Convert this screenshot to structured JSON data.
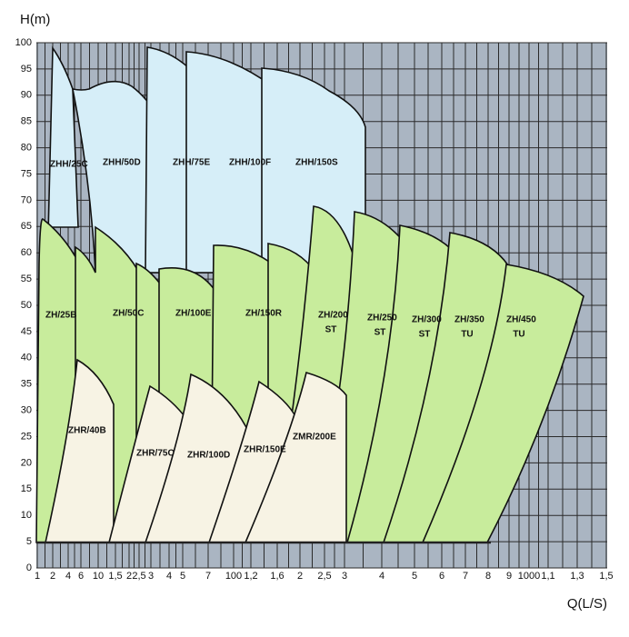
{
  "chart_data": {
    "type": "region",
    "y_label": "H(m)",
    "x_label": "Q(L/S)",
    "ylim": [
      0,
      100
    ],
    "yticks": [
      0,
      5,
      10,
      15,
      20,
      25,
      30,
      35,
      40,
      45,
      50,
      55,
      60,
      65,
      70,
      75,
      80,
      85,
      90,
      95,
      100
    ],
    "categories": [
      "1",
      "2",
      "4",
      "6",
      "10",
      "1,5",
      "2",
      "2,5",
      "3",
      "4",
      "5",
      "7",
      "100",
      "1,2",
      "1,6",
      "2",
      "2,5",
      "3",
      "4",
      "5",
      "6",
      "7",
      "8",
      "9",
      "1000",
      "1,1",
      "1,3",
      "1,5"
    ],
    "grid": true,
    "regions": [
      {
        "label": [
          "ZHH/25C"
        ],
        "color": "#d6eef8"
      },
      {
        "label": [
          "ZHH/50D"
        ],
        "color": "#d6eef8"
      },
      {
        "label": [
          "ZHH/75E"
        ],
        "color": "#d6eef8"
      },
      {
        "label": [
          "ZHH/100F"
        ],
        "color": "#d6eef8"
      },
      {
        "label": [
          "ZHH/150S"
        ],
        "color": "#d6eef8"
      },
      {
        "label": [
          "ZH/25B"
        ],
        "color": "#c8ec9c"
      },
      {
        "label": [
          "ZH/50C"
        ],
        "color": "#c8ec9c"
      },
      {
        "label": [
          "ZH/100E"
        ],
        "color": "#c8ec9c"
      },
      {
        "label": [
          "ZH/150R"
        ],
        "color": "#c8ec9c"
      },
      {
        "label": [
          "ZH/200",
          "ST"
        ],
        "color": "#c8ec9c"
      },
      {
        "label": [
          "ZH/250",
          "ST"
        ],
        "color": "#c8ec9c"
      },
      {
        "label": [
          "ZH/300",
          "ST"
        ],
        "color": "#c8ec9c"
      },
      {
        "label": [
          "ZH/350",
          "TU"
        ],
        "color": "#c8ec9c"
      },
      {
        "label": [
          "ZH/450",
          "TU"
        ],
        "color": "#c8ec9c"
      },
      {
        "label": [
          "ZHR/40B"
        ],
        "color": "#f7f3e4"
      },
      {
        "label": [
          "ZHR/75C"
        ],
        "color": "#f7f3e4"
      },
      {
        "label": [
          "ZHR/100D"
        ],
        "color": "#f7f3e4"
      },
      {
        "label": [
          "ZHR/150E"
        ],
        "color": "#f7f3e4"
      },
      {
        "label": [
          "ZMR/200E"
        ],
        "color": "#f7f3e4"
      }
    ]
  }
}
